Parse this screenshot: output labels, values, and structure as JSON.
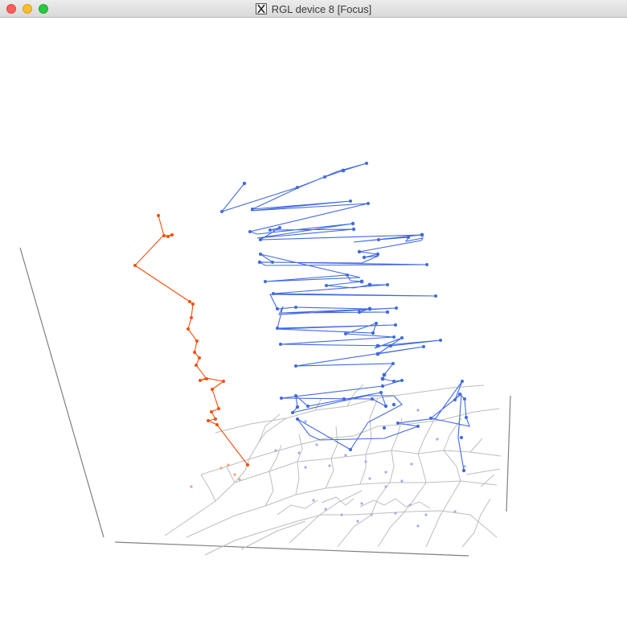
{
  "window": {
    "title": "RGL device 8 [Focus]",
    "title_icon": "x11-icon"
  },
  "scene": {
    "series_colors": {
      "orange": "#f2500c",
      "blue": "#4169e1",
      "voronoi": "#bdbdbd",
      "axes": "#7f7f7f"
    }
  }
}
